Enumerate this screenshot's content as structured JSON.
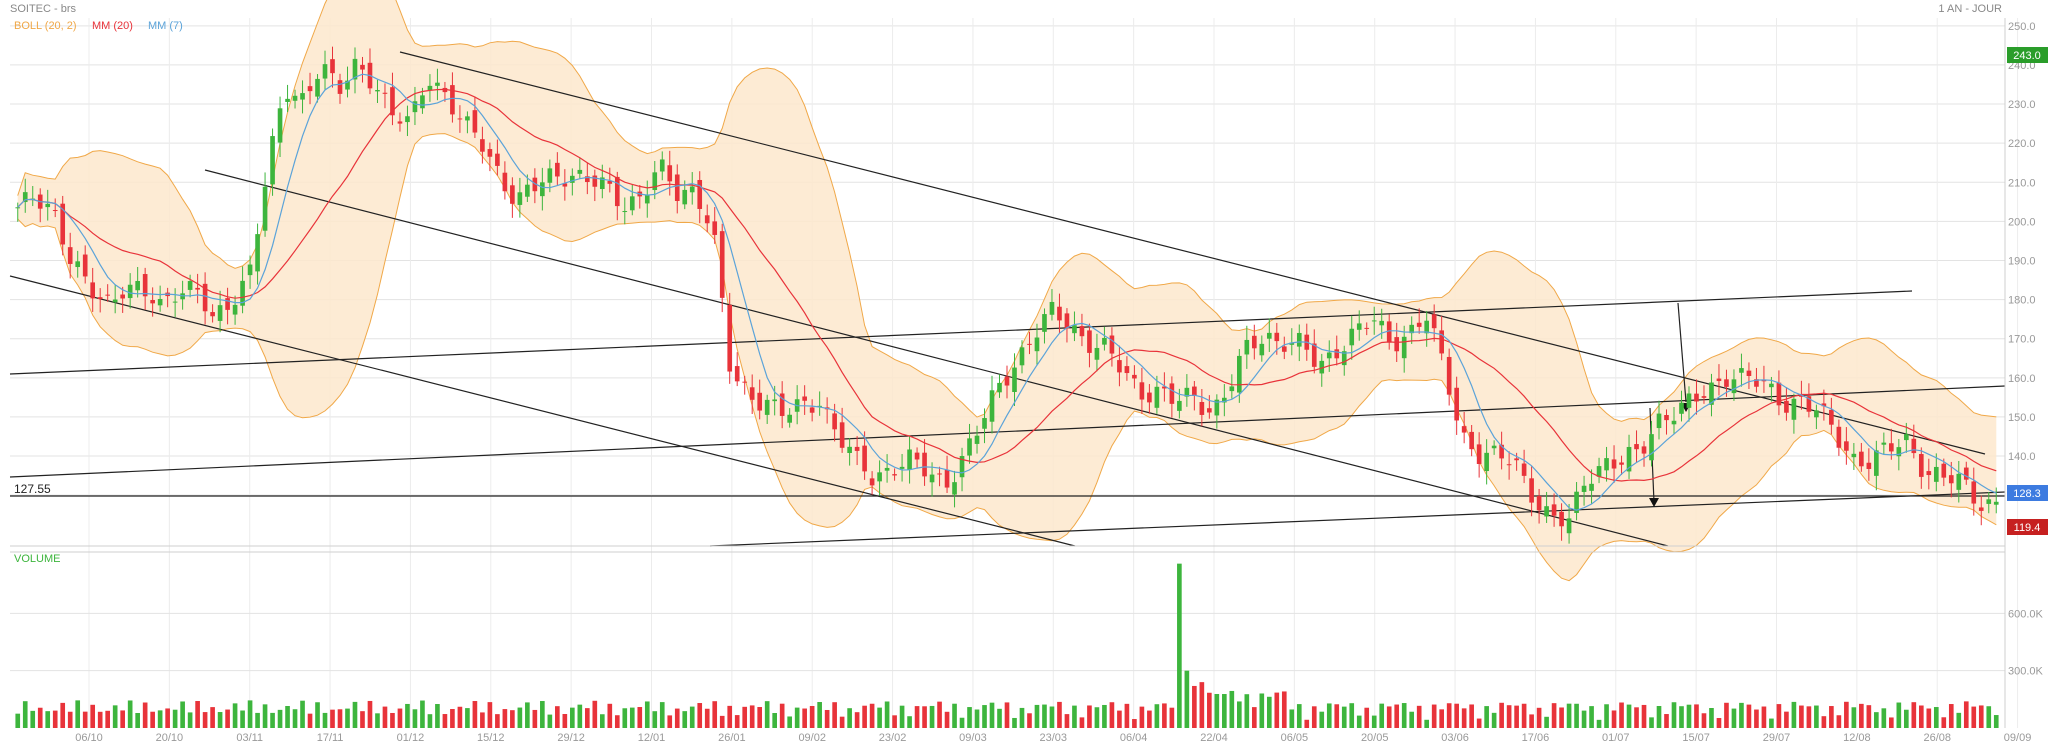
{
  "header": {
    "title": "SOITEC - brs",
    "period": "1 AN - JOUR"
  },
  "legend": {
    "boll": "BOLL (20, 2)",
    "ma20": "MM (20)",
    "ma7": "MM (7)"
  },
  "volume_label": "VOLUME",
  "hline_label": "127.55",
  "colors": {
    "up": "#3db53d",
    "down": "#e8333a",
    "boll_fill": "#fde8cc",
    "boll_line": "#f0a848",
    "ma20": "#e8333a",
    "ma7": "#5ba3d9",
    "grid": "#e3e3e3",
    "badge_top": "#2a9d2a",
    "badge_last": "#3d7be0",
    "badge_low": "#c62020"
  },
  "chart_data": {
    "type": "candlestick",
    "price_axis": {
      "ticks": [
        "130.0",
        "140.0",
        "150.0",
        "160.0",
        "170.0",
        "180.0",
        "190.0",
        "200.0",
        "210.0",
        "220.0",
        "230.0",
        "240.0",
        "250.0"
      ],
      "ylim": [
        117,
        252
      ]
    },
    "volume_axis": {
      "ticks": [
        "300.0K",
        "600.0K"
      ],
      "ylim": [
        0,
        900
      ]
    },
    "date_ticks": [
      "06/10",
      "20/10",
      "03/11",
      "17/11",
      "01/12",
      "15/12",
      "29/12",
      "12/01",
      "26/01",
      "09/02",
      "23/02",
      "09/03",
      "23/03",
      "06/04",
      "22/04",
      "06/05",
      "20/05",
      "03/06",
      "17/06",
      "01/07",
      "15/07",
      "29/07",
      "12/08",
      "26/08",
      "09/09"
    ],
    "horizontal_line": 127.55,
    "price_badges": {
      "high": "243.0",
      "last": "128.3",
      "low": "119.4"
    },
    "key_closes": [
      202,
      207,
      204,
      189,
      182,
      180,
      184,
      181,
      178,
      184,
      183,
      173,
      180,
      188,
      212,
      233,
      232,
      241,
      232,
      240,
      237,
      227,
      224,
      238,
      233,
      224,
      220,
      213,
      205,
      208,
      212,
      213,
      210,
      208,
      205,
      207,
      213,
      207,
      209,
      198,
      160,
      156,
      155,
      150,
      152,
      155,
      146,
      138,
      134,
      138,
      139,
      135,
      133,
      140,
      147,
      157,
      165,
      171,
      176,
      174,
      170,
      167,
      161,
      157,
      157,
      153,
      155,
      152,
      158,
      167,
      171,
      170,
      168,
      162,
      168,
      172,
      174,
      169,
      172,
      176,
      162,
      146,
      141,
      139,
      138,
      131,
      124,
      122,
      135,
      139,
      138,
      140,
      150,
      152,
      153,
      157,
      162,
      160,
      157,
      154,
      155,
      151,
      145,
      140,
      139,
      141,
      144,
      137,
      134,
      133,
      129,
      128.3
    ],
    "series": [
      {
        "name": "BOLL (20, 2)"
      },
      {
        "name": "MM (20)"
      },
      {
        "name": "MM (7)"
      }
    ]
  }
}
